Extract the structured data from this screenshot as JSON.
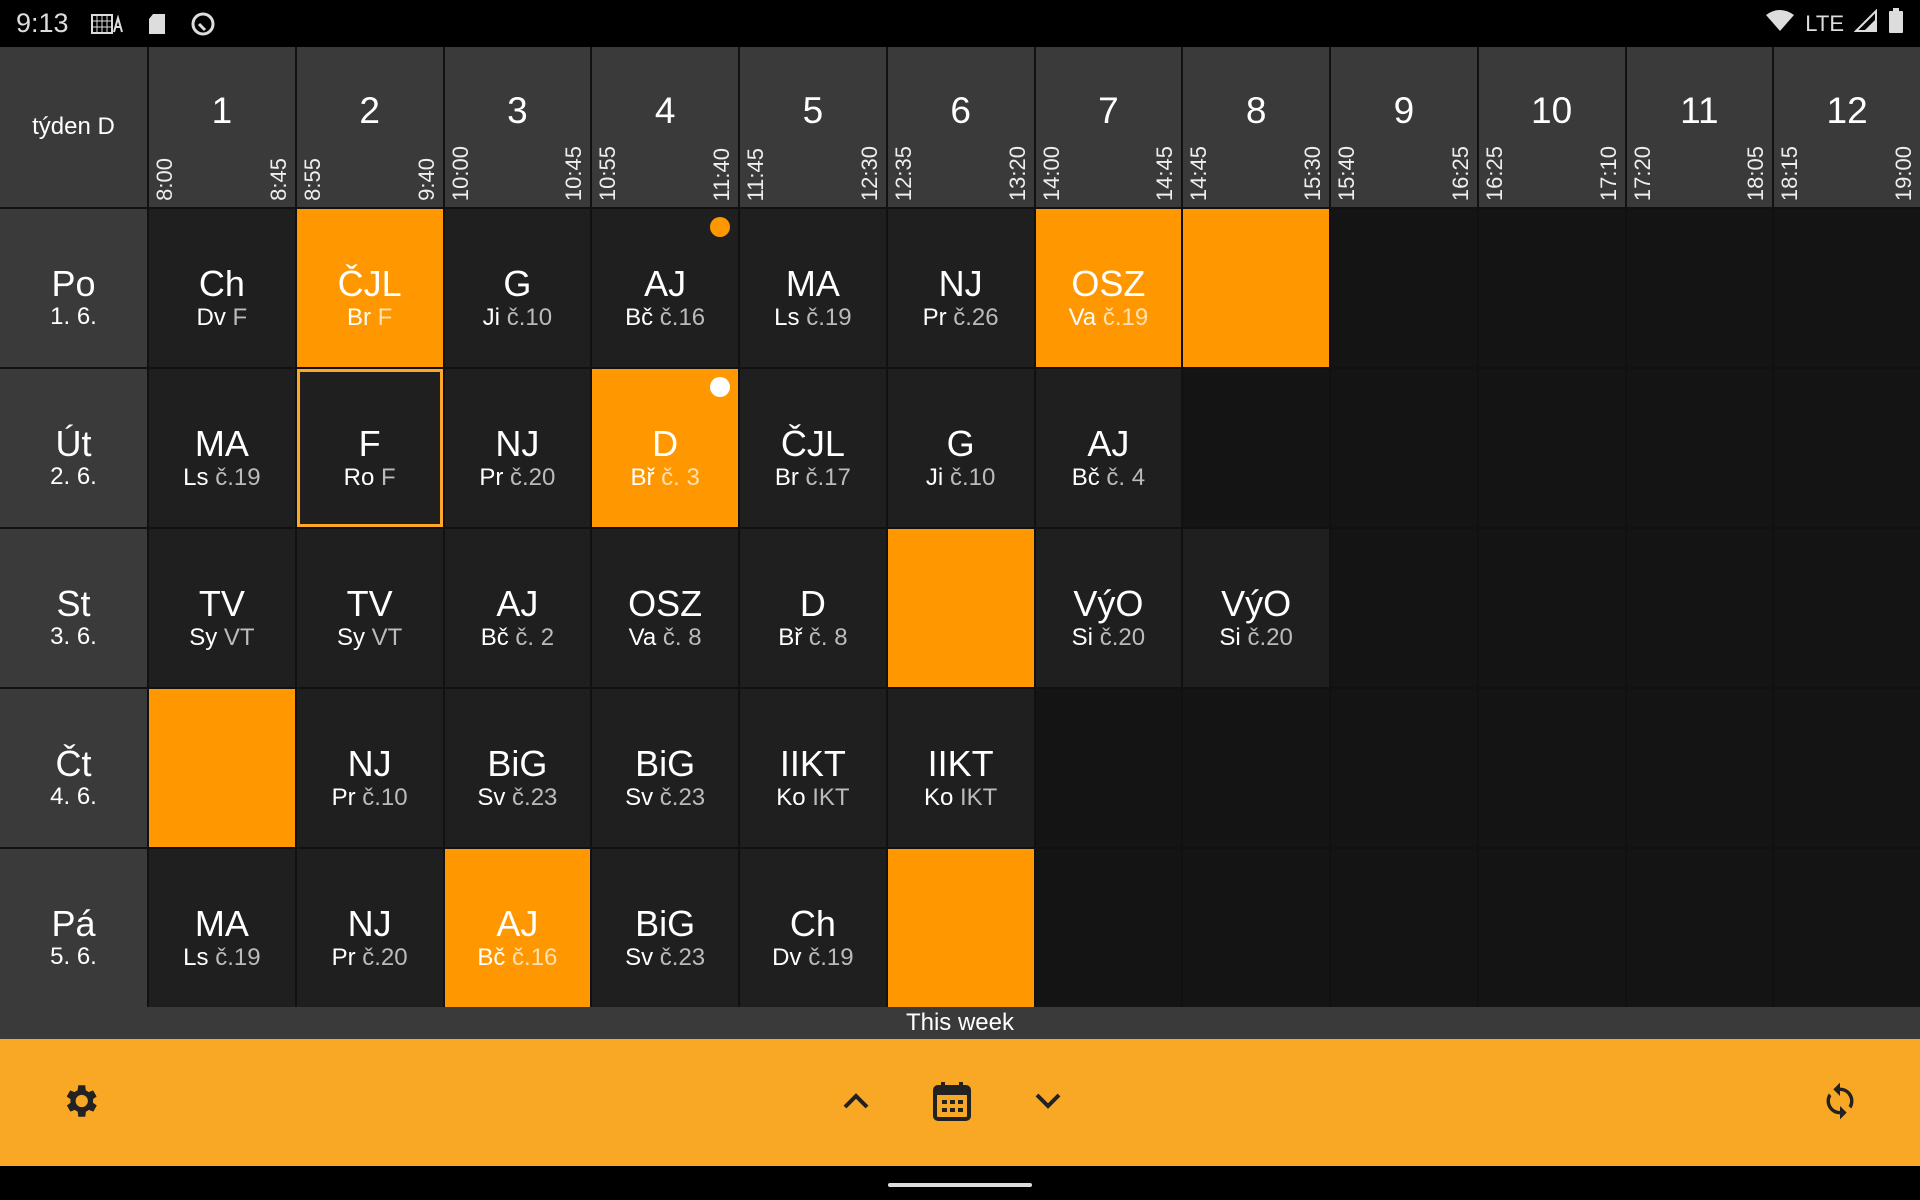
{
  "status_bar": {
    "time": "9:13",
    "network": "LTE",
    "icons": [
      "keyboard-a-icon",
      "sd-card-icon",
      "data-saver-icon",
      "wifi-icon",
      "signal-icon",
      "battery-icon"
    ]
  },
  "header": {
    "week_label": "týden D",
    "periods": [
      {
        "num": "1",
        "start": "8:00",
        "end": "8:45"
      },
      {
        "num": "2",
        "start": "8:55",
        "end": "9:40"
      },
      {
        "num": "3",
        "start": "10:00",
        "end": "10:45"
      },
      {
        "num": "4",
        "start": "10:55",
        "end": "11:40"
      },
      {
        "num": "5",
        "start": "11:45",
        "end": "12:30"
      },
      {
        "num": "6",
        "start": "12:35",
        "end": "13:20"
      },
      {
        "num": "7",
        "start": "14:00",
        "end": "14:45"
      },
      {
        "num": "8",
        "start": "14:45",
        "end": "15:30"
      },
      {
        "num": "9",
        "start": "15:40",
        "end": "16:25"
      },
      {
        "num": "10",
        "start": "16:25",
        "end": "17:10"
      },
      {
        "num": "11",
        "start": "17:20",
        "end": "18:05"
      },
      {
        "num": "12",
        "start": "18:15",
        "end": "19:00"
      }
    ]
  },
  "colors": {
    "accent": "#ff9800",
    "bar": "#f9a825",
    "cell": "#1f1f1f",
    "header": "#3a3a3a"
  },
  "days": [
    {
      "name": "Po",
      "date": "1. 6.",
      "lessons": [
        {
          "subject": "Ch",
          "teacher": "Dv",
          "room": "F"
        },
        {
          "subject": "ČJL",
          "teacher": "Br",
          "room": "F",
          "state": "changed"
        },
        {
          "subject": "G",
          "teacher": "Ji",
          "room": "č.10"
        },
        {
          "subject": "AJ",
          "teacher": "Bč",
          "room": "č.16",
          "dot": "#ff9800"
        },
        {
          "subject": "MA",
          "teacher": "Ls",
          "room": "č.19"
        },
        {
          "subject": "NJ",
          "teacher": "Pr",
          "room": "č.26"
        },
        {
          "subject": "OSZ",
          "teacher": "Va",
          "room": "č.19",
          "state": "changed"
        },
        {
          "state": "changed"
        },
        {
          "state": "none"
        },
        {
          "state": "none"
        },
        {
          "state": "none"
        },
        {
          "state": "none"
        }
      ]
    },
    {
      "name": "Út",
      "date": "2. 6.",
      "lessons": [
        {
          "subject": "MA",
          "teacher": "Ls",
          "room": "č.19"
        },
        {
          "subject": "F",
          "teacher": "Ro",
          "room": "F",
          "state": "selected"
        },
        {
          "subject": "NJ",
          "teacher": "Pr",
          "room": "č.20"
        },
        {
          "subject": "D",
          "teacher": "Bř",
          "room": "č. 3",
          "state": "changed",
          "dot": "#ffffff"
        },
        {
          "subject": "ČJL",
          "teacher": "Br",
          "room": "č.17"
        },
        {
          "subject": "G",
          "teacher": "Ji",
          "room": "č.10"
        },
        {
          "subject": "AJ",
          "teacher": "Bč",
          "room": "č. 4"
        },
        {
          "state": "none"
        },
        {
          "state": "none"
        },
        {
          "state": "none"
        },
        {
          "state": "none"
        },
        {
          "state": "none"
        }
      ]
    },
    {
      "name": "St",
      "date": "3. 6.",
      "lessons": [
        {
          "subject": "TV",
          "teacher": "Sy",
          "room": "VT"
        },
        {
          "subject": "TV",
          "teacher": "Sy",
          "room": "VT"
        },
        {
          "subject": "AJ",
          "teacher": "Bč",
          "room": "č. 2"
        },
        {
          "subject": "OSZ",
          "teacher": "Va",
          "room": "č. 8"
        },
        {
          "subject": "D",
          "teacher": "Bř",
          "room": "č. 8"
        },
        {
          "state": "changed"
        },
        {
          "subject": "VýO",
          "teacher": "Si",
          "room": "č.20"
        },
        {
          "subject": "VýO",
          "teacher": "Si",
          "room": "č.20"
        },
        {
          "state": "none"
        },
        {
          "state": "none"
        },
        {
          "state": "none"
        },
        {
          "state": "none"
        }
      ]
    },
    {
      "name": "Čt",
      "date": "4. 6.",
      "lessons": [
        {
          "state": "changed"
        },
        {
          "subject": "NJ",
          "teacher": "Pr",
          "room": "č.10"
        },
        {
          "subject": "BiG",
          "teacher": "Sv",
          "room": "č.23"
        },
        {
          "subject": "BiG",
          "teacher": "Sv",
          "room": "č.23"
        },
        {
          "subject": "IIKT",
          "teacher": "Ko",
          "room": "IKT"
        },
        {
          "subject": "IIKT",
          "teacher": "Ko",
          "room": "IKT"
        },
        {
          "state": "none"
        },
        {
          "state": "none"
        },
        {
          "state": "none"
        },
        {
          "state": "none"
        },
        {
          "state": "none"
        },
        {
          "state": "none"
        }
      ]
    },
    {
      "name": "Pá",
      "date": "5. 6.",
      "lessons": [
        {
          "subject": "MA",
          "teacher": "Ls",
          "room": "č.19"
        },
        {
          "subject": "NJ",
          "teacher": "Pr",
          "room": "č.20"
        },
        {
          "subject": "AJ",
          "teacher": "Bč",
          "room": "č.16",
          "state": "changed"
        },
        {
          "subject": "BiG",
          "teacher": "Sv",
          "room": "č.23"
        },
        {
          "subject": "Ch",
          "teacher": "Dv",
          "room": "č.19"
        },
        {
          "state": "changed"
        },
        {
          "state": "none"
        },
        {
          "state": "none"
        },
        {
          "state": "none"
        },
        {
          "state": "none"
        },
        {
          "state": "none"
        },
        {
          "state": "none"
        }
      ]
    }
  ],
  "week_bar": {
    "label": "This week"
  },
  "toolbar": {
    "icons": [
      "gear-icon",
      "chevron-up-icon",
      "calendar-icon",
      "chevron-down-icon",
      "refresh-icon"
    ]
  }
}
